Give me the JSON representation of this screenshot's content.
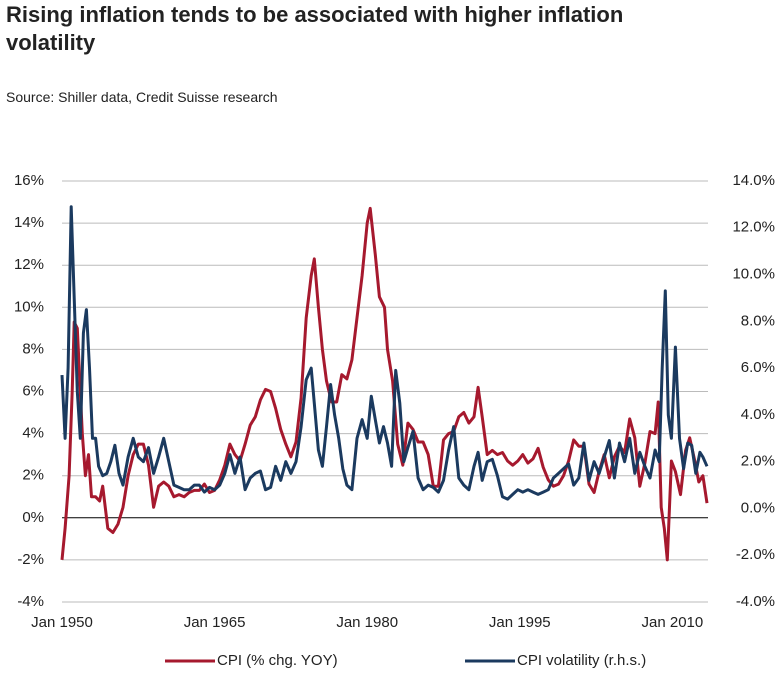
{
  "chart_data": {
    "type": "line",
    "title": "Rising inflation tends to be associated with higher inflation volatility",
    "subtitle": "Source: Shiller data, Credit Suisse research",
    "xlim": [
      1950,
      2013.5
    ],
    "xticks": [
      {
        "value": 1950,
        "label": "Jan 1950"
      },
      {
        "value": 1965,
        "label": "Jan 1965"
      },
      {
        "value": 1980,
        "label": "Jan 1980"
      },
      {
        "value": 1995,
        "label": "Jan 1995"
      },
      {
        "value": 2010,
        "label": "Jan 2010"
      }
    ],
    "ylim": [
      -4,
      16
    ],
    "yticks": [
      {
        "value": -4,
        "label": "-4%"
      },
      {
        "value": -2,
        "label": "-2%"
      },
      {
        "value": 0,
        "label": "0%"
      },
      {
        "value": 2,
        "label": "2%"
      },
      {
        "value": 4,
        "label": "4%"
      },
      {
        "value": 6,
        "label": "6%"
      },
      {
        "value": 8,
        "label": "8%"
      },
      {
        "value": 10,
        "label": "10%"
      },
      {
        "value": 12,
        "label": "12%"
      },
      {
        "value": 14,
        "label": "14%"
      },
      {
        "value": 16,
        "label": "16%"
      }
    ],
    "y2lim": [
      -4,
      14
    ],
    "y2ticks": [
      {
        "value": -4,
        "label": "-4.0%"
      },
      {
        "value": -2,
        "label": "-2.0%"
      },
      {
        "value": 0,
        "label": "0.0%"
      },
      {
        "value": 2,
        "label": "2.0%"
      },
      {
        "value": 4,
        "label": "4.0%"
      },
      {
        "value": 6,
        "label": "6.0%"
      },
      {
        "value": 8,
        "label": "8.0%"
      },
      {
        "value": 10,
        "label": "10.0%"
      },
      {
        "value": 12,
        "label": "12.0%"
      },
      {
        "value": 14,
        "label": "14.0%"
      }
    ],
    "grid": true,
    "legend": "bottom",
    "series": [
      {
        "name": "CPI (% chg. YOY)",
        "color": "#a6192e",
        "x": [
          1950.0,
          1950.3,
          1950.7,
          1951.0,
          1951.2,
          1951.5,
          1951.8,
          1952.0,
          1952.3,
          1952.6,
          1952.9,
          1953.3,
          1953.7,
          1954.0,
          1954.5,
          1955.0,
          1955.5,
          1956.0,
          1956.5,
          1957.0,
          1957.5,
          1958.0,
          1958.5,
          1959.0,
          1959.5,
          1960.0,
          1960.5,
          1961.0,
          1961.5,
          1962.0,
          1962.5,
          1963.0,
          1963.5,
          1964.0,
          1964.5,
          1965.0,
          1965.5,
          1966.0,
          1966.5,
          1967.0,
          1967.5,
          1968.0,
          1968.5,
          1969.0,
          1969.5,
          1970.0,
          1970.5,
          1971.0,
          1971.5,
          1972.0,
          1972.5,
          1973.0,
          1973.5,
          1974.0,
          1974.5,
          1974.8,
          1975.2,
          1975.6,
          1976.0,
          1976.5,
          1977.0,
          1977.5,
          1978.0,
          1978.5,
          1979.0,
          1979.5,
          1980.0,
          1980.3,
          1980.8,
          1981.2,
          1981.7,
          1982.0,
          1982.5,
          1983.0,
          1983.5,
          1984.0,
          1984.5,
          1985.0,
          1985.5,
          1986.0,
          1986.5,
          1987.0,
          1987.5,
          1988.0,
          1988.5,
          1989.0,
          1989.5,
          1990.0,
          1990.5,
          1990.9,
          1991.3,
          1991.8,
          1992.3,
          1992.8,
          1993.3,
          1993.8,
          1994.3,
          1994.8,
          1995.3,
          1995.8,
          1996.3,
          1996.8,
          1997.3,
          1997.8,
          1998.3,
          1998.8,
          1999.3,
          1999.8,
          2000.3,
          2000.8,
          2001.3,
          2001.8,
          2002.3,
          2002.8,
          2003.3,
          2003.8,
          2004.3,
          2004.8,
          2005.3,
          2005.8,
          2006.3,
          2006.8,
          2007.3,
          2007.8,
          2008.3,
          2008.6,
          2008.9,
          2009.2,
          2009.5,
          2009.9,
          2010.3,
          2010.8,
          2011.3,
          2011.7,
          2012.2,
          2012.6,
          2013.0,
          2013.4
        ],
        "values": [
          -2.0,
          -0.5,
          2,
          6,
          9.3,
          9,
          6,
          4,
          2,
          3,
          1,
          1,
          0.8,
          1.5,
          -0.5,
          -0.7,
          -0.3,
          0.5,
          2,
          3,
          3.5,
          3.5,
          2.5,
          0.5,
          1.5,
          1.7,
          1.5,
          1.0,
          1.1,
          1.0,
          1.2,
          1.3,
          1.3,
          1.6,
          1.2,
          1.3,
          1.8,
          2.5,
          3.5,
          3.0,
          2.7,
          3.5,
          4.4,
          4.8,
          5.6,
          6.1,
          6.0,
          5.2,
          4.2,
          3.5,
          2.9,
          3.6,
          5.7,
          9.5,
          11.5,
          12.3,
          10.0,
          8.0,
          6.5,
          5.5,
          5.5,
          6.8,
          6.6,
          7.5,
          9.5,
          11.5,
          14,
          14.7,
          12.5,
          10.5,
          10,
          8,
          6.5,
          3.5,
          2.5,
          4.5,
          4.2,
          3.6,
          3.6,
          3,
          1.5,
          1.5,
          3.7,
          4,
          4.1,
          4.8,
          5,
          4.5,
          4.8,
          6.2,
          4.8,
          3,
          3.2,
          3,
          3.1,
          2.7,
          2.5,
          2.7,
          3,
          2.6,
          2.8,
          3.3,
          2.4,
          1.8,
          1.5,
          1.6,
          2.0,
          2.7,
          3.7,
          3.4,
          3.4,
          1.6,
          1.2,
          2.2,
          3.0,
          1.9,
          2.9,
          3.4,
          3.1,
          4.7,
          3.8,
          1.5,
          2.6,
          4.1,
          4.0,
          5.5,
          0.5,
          -0.5,
          -2.0,
          2.7,
          2.2,
          1.1,
          3.2,
          3.8,
          2.7,
          1.7,
          2.0,
          0.7
        ]
      },
      {
        "name": "CPI volatility (r.h.s.)",
        "color": "#1b3a5f",
        "axis": "y2",
        "x": [
          1950.0,
          1950.3,
          1950.6,
          1950.9,
          1951.2,
          1951.5,
          1951.8,
          1952.1,
          1952.4,
          1952.7,
          1953.0,
          1953.3,
          1953.6,
          1954.0,
          1954.4,
          1954.8,
          1955.2,
          1955.6,
          1956.0,
          1956.5,
          1957.0,
          1957.5,
          1958.0,
          1958.5,
          1959.0,
          1959.5,
          1960.0,
          1960.5,
          1961.0,
          1961.5,
          1962.0,
          1962.5,
          1963.0,
          1963.5,
          1964.0,
          1964.5,
          1965.0,
          1965.5,
          1966.0,
          1966.5,
          1967.0,
          1967.5,
          1968.0,
          1968.5,
          1969.0,
          1969.5,
          1970.0,
          1970.5,
          1971.0,
          1971.5,
          1972.0,
          1972.5,
          1973.0,
          1973.5,
          1974.0,
          1974.5,
          1974.8,
          1975.2,
          1975.6,
          1976.0,
          1976.4,
          1976.8,
          1977.2,
          1977.6,
          1978.0,
          1978.5,
          1979.0,
          1979.5,
          1980.0,
          1980.4,
          1980.8,
          1981.2,
          1981.6,
          1982.0,
          1982.4,
          1982.8,
          1983.2,
          1983.6,
          1984.0,
          1984.5,
          1985.0,
          1985.5,
          1986.0,
          1986.5,
          1987.0,
          1987.5,
          1988.0,
          1988.5,
          1989.0,
          1989.5,
          1990.0,
          1990.5,
          1990.9,
          1991.3,
          1991.8,
          1992.3,
          1992.8,
          1993.3,
          1993.8,
          1994.3,
          1994.8,
          1995.3,
          1995.8,
          1996.3,
          1996.8,
          1997.3,
          1997.8,
          1998.3,
          1998.8,
          1999.3,
          1999.8,
          2000.3,
          2000.8,
          2001.3,
          2001.8,
          2002.3,
          2002.8,
          2003.3,
          2003.8,
          2004.3,
          2004.8,
          2005.3,
          2005.8,
          2006.3,
          2006.8,
          2007.3,
          2007.8,
          2008.3,
          2008.7,
          2009.0,
          2009.3,
          2009.6,
          2009.9,
          2010.3,
          2010.7,
          2011.1,
          2011.5,
          2011.9,
          2012.3,
          2012.7,
          2013.0,
          2013.4
        ],
        "values": [
          5.7,
          3.0,
          6,
          12.9,
          9,
          5,
          3,
          7.5,
          8.5,
          6,
          3.0,
          3.0,
          1.8,
          1.4,
          1.5,
          2,
          2.7,
          1.5,
          1.0,
          2.2,
          3.0,
          2.2,
          2,
          2.6,
          1.5,
          2.2,
          3.0,
          2.0,
          1.0,
          0.9,
          0.8,
          0.8,
          1.0,
          1.0,
          0.7,
          0.9,
          0.8,
          1.0,
          1.5,
          2.3,
          1.5,
          2.2,
          0.8,
          1.3,
          1.5,
          1.6,
          0.8,
          0.9,
          1.8,
          1.2,
          2.0,
          1.5,
          2.0,
          3.5,
          5.5,
          6.0,
          4.5,
          2.5,
          1.8,
          3.5,
          5.3,
          4.0,
          3.0,
          1.7,
          1.0,
          0.8,
          3.0,
          3.8,
          3.0,
          4.8,
          3.8,
          2.8,
          3.5,
          2.8,
          1.8,
          5.9,
          4.5,
          2.0,
          2.6,
          3.3,
          1.3,
          0.8,
          1.0,
          0.9,
          0.7,
          1.2,
          2.5,
          3.5,
          1.3,
          1.0,
          0.8,
          1.8,
          2.4,
          1.2,
          2,
          2.1,
          1.4,
          0.5,
          0.4,
          0.6,
          0.8,
          0.7,
          0.8,
          0.7,
          0.6,
          0.7,
          0.8,
          1.3,
          1.5,
          1.7,
          1.9,
          1.0,
          1.3,
          2.8,
          1.2,
          2.0,
          1.5,
          2.2,
          2.9,
          1.3,
          2.8,
          2.0,
          3.0,
          1.5,
          2.4,
          1.8,
          1.3,
          2.5,
          2.0,
          6,
          9.3,
          4,
          3,
          6.9,
          3,
          1.7,
          2.8,
          2.7,
          1.5,
          2.4,
          2.2,
          1.8
        ]
      }
    ]
  }
}
